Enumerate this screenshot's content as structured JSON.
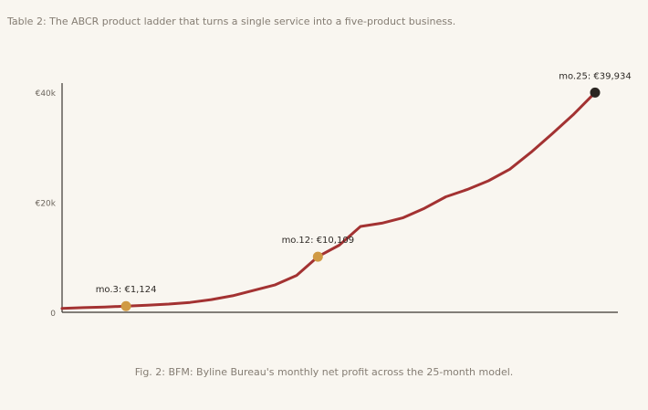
{
  "table_caption": "Table 2: The ABCR product ladder that turns a single service into a five-product business.",
  "figure_caption": "Fig. 2: BFM: Byline Bureau's monthly net profit across the 25-month model.",
  "chart_data": {
    "type": "line",
    "title": "",
    "xlabel": "",
    "ylabel": "",
    "xlim": [
      0,
      25
    ],
    "ylim": [
      0,
      40000
    ],
    "y_ticks": [
      {
        "value": 0,
        "label": "0"
      },
      {
        "value": 20000,
        "label": "€20k"
      },
      {
        "value": 40000,
        "label": "€40k"
      }
    ],
    "grid": false,
    "legend": "none",
    "series": [
      {
        "x": [
          0,
          1,
          2,
          3,
          4,
          5,
          6,
          7,
          8,
          9,
          10,
          11,
          12,
          13,
          14,
          15,
          16,
          17,
          18,
          19,
          20,
          21,
          22,
          23,
          24,
          25
        ],
        "y": [
          700,
          850,
          950,
          1124,
          1300,
          1500,
          1800,
          2300,
          3000,
          4000,
          5000,
          6700,
          10109,
          12200,
          15600,
          16200,
          17200,
          18900,
          21000,
          22300,
          23900,
          26000,
          29100,
          32500,
          36000,
          39934
        ],
        "color": "#a33232"
      }
    ],
    "annotations": [
      {
        "x": 3,
        "y": 1124,
        "label": "mo.3: €1,124",
        "color": "#d09a44"
      },
      {
        "x": 12,
        "y": 10109,
        "label": "mo.12: €10,109",
        "color": "#d09a44"
      },
      {
        "x": 25,
        "y": 39934,
        "label": "mo.25: €39,934",
        "color": "#2b2622"
      }
    ],
    "colors": {
      "axis": "#3b3631",
      "tick_label": "#6d665e",
      "annotation_text": "#2e2a26"
    }
  }
}
